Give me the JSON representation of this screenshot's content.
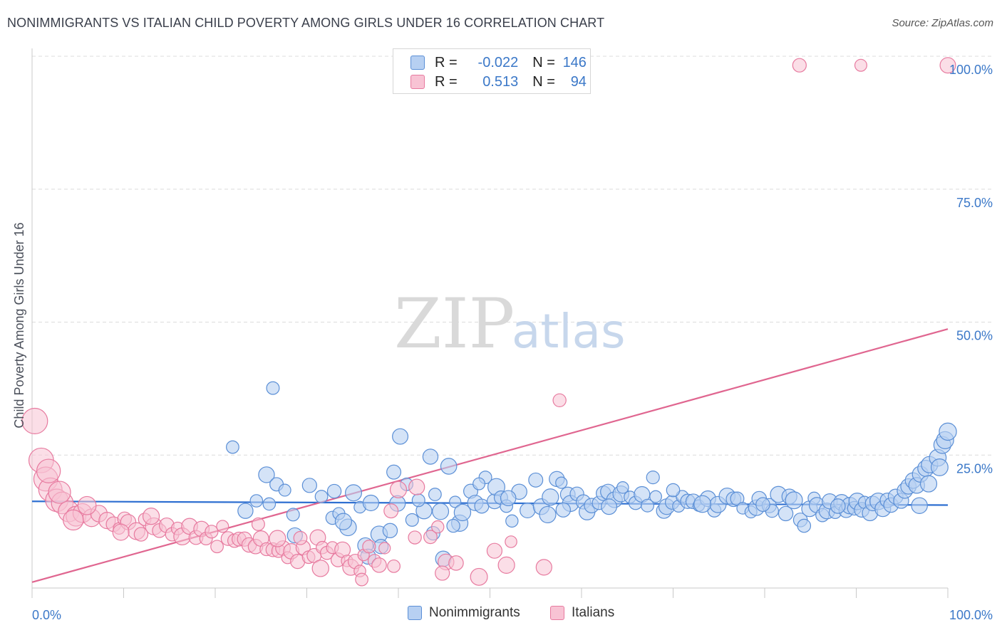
{
  "title": "NONIMMIGRANTS VS ITALIAN CHILD POVERTY AMONG GIRLS UNDER 16 CORRELATION CHART",
  "source": "Source: ZipAtlas.com",
  "watermark": {
    "zip": "ZIP",
    "atlas": "atlas"
  },
  "legend_top": [
    {
      "r_label": "R =",
      "r_value": "-0.022",
      "n_label": "N =",
      "n_value": "146"
    },
    {
      "r_label": "R =",
      "r_value": "0.513",
      "n_label": "N =",
      "n_value": "94"
    }
  ],
  "colors": {
    "blue_fill": "#b7d0f2",
    "blue_stroke": "#5b8fd6",
    "blue_line": "#2e6fd1",
    "pink_fill": "#f8c3d4",
    "pink_stroke": "#e77a9f",
    "pink_line": "#e06690",
    "tick_text": "#3b78c8"
  },
  "chart_data": {
    "type": "scatter",
    "title": "NONIMMIGRANTS VS ITALIAN CHILD POVERTY AMONG GIRLS UNDER 16 CORRELATION CHART",
    "xlabel": "",
    "ylabel": "Child Poverty Among Girls Under 16",
    "xlim": [
      0,
      100
    ],
    "ylim": [
      0,
      100
    ],
    "x_tick_labels": [
      "0.0%",
      "100.0%"
    ],
    "y_tick_labels": [
      "25.0%",
      "50.0%",
      "75.0%",
      "100.0%"
    ],
    "y_ticks": [
      25,
      50,
      75,
      100
    ],
    "grid": true,
    "legend_position": "bottom",
    "series": [
      {
        "name": "Nonimmigrants",
        "r": -0.022,
        "n": 146,
        "trend": {
          "x": [
            0,
            100
          ],
          "y": [
            16.3,
            15.6
          ]
        },
        "points": [
          [
            21.9,
            26.5
          ],
          [
            26.3,
            37.6
          ],
          [
            25.6,
            21.3
          ],
          [
            23.3,
            14.5
          ],
          [
            24.5,
            16.4
          ],
          [
            25.9,
            15.8
          ],
          [
            26.7,
            19.5
          ],
          [
            27.6,
            18.4
          ],
          [
            28.5,
            13.8
          ],
          [
            28.7,
            9.9
          ],
          [
            30.3,
            19.3
          ],
          [
            31.6,
            17.2
          ],
          [
            32.8,
            13.2
          ],
          [
            33.5,
            14.0
          ],
          [
            34.5,
            11.4
          ],
          [
            35.1,
            17.9
          ],
          [
            35.8,
            15.2
          ],
          [
            36.4,
            8.0
          ],
          [
            36.7,
            5.9
          ],
          [
            37.9,
            10.1
          ],
          [
            38.1,
            7.8
          ],
          [
            39.1,
            10.8
          ],
          [
            39.5,
            21.8
          ],
          [
            39.9,
            15.9
          ],
          [
            40.2,
            28.5
          ],
          [
            40.9,
            19.5
          ],
          [
            41.5,
            12.8
          ],
          [
            42.8,
            14.5
          ],
          [
            43.5,
            24.7
          ],
          [
            43.8,
            10.3
          ],
          [
            44.6,
            14.4
          ],
          [
            44.9,
            5.5
          ],
          [
            45.5,
            22.9
          ],
          [
            46.2,
            16.2
          ],
          [
            46.7,
            12.2
          ],
          [
            47.0,
            14.2
          ],
          [
            47.9,
            18.2
          ],
          [
            48.4,
            16.0
          ],
          [
            49.1,
            15.4
          ],
          [
            49.5,
            20.8
          ],
          [
            50.5,
            16.3
          ],
          [
            50.7,
            19.0
          ],
          [
            51.2,
            17.0
          ],
          [
            51.8,
            15.4
          ],
          [
            52.4,
            12.6
          ],
          [
            53.2,
            18.1
          ],
          [
            54.1,
            14.6
          ],
          [
            55.0,
            20.3
          ],
          [
            55.6,
            15.3
          ],
          [
            56.3,
            13.8
          ],
          [
            56.6,
            17.1
          ],
          [
            57.3,
            20.5
          ],
          [
            57.8,
            19.8
          ],
          [
            58.5,
            17.6
          ],
          [
            58.8,
            15.9
          ],
          [
            59.5,
            17.7
          ],
          [
            60.2,
            16.2
          ],
          [
            60.6,
            14.3
          ],
          [
            61.1,
            15.5
          ],
          [
            61.9,
            16.0
          ],
          [
            62.4,
            17.8
          ],
          [
            62.9,
            18.1
          ],
          [
            63.6,
            16.6
          ],
          [
            64.3,
            17.7
          ],
          [
            64.5,
            18.9
          ],
          [
            65.3,
            17.1
          ],
          [
            65.9,
            16.0
          ],
          [
            66.6,
            17.6
          ],
          [
            67.2,
            15.5
          ],
          [
            68.1,
            17.2
          ],
          [
            69.0,
            14.5
          ],
          [
            69.3,
            15.3
          ],
          [
            69.9,
            16.1
          ],
          [
            70.6,
            15.4
          ],
          [
            71.0,
            17.2
          ],
          [
            71.6,
            16.3
          ],
          [
            72.2,
            16.3
          ],
          [
            72.8,
            15.5
          ],
          [
            73.8,
            16.8
          ],
          [
            74.5,
            14.6
          ],
          [
            74.9,
            15.7
          ],
          [
            75.9,
            17.3
          ],
          [
            76.6,
            16.7
          ],
          [
            77.0,
            16.8
          ],
          [
            77.6,
            15.0
          ],
          [
            78.5,
            14.3
          ],
          [
            79.1,
            15.1
          ],
          [
            79.4,
            16.8
          ],
          [
            80.5,
            15.5
          ],
          [
            80.8,
            14.5
          ],
          [
            81.5,
            17.6
          ],
          [
            82.3,
            14.0
          ],
          [
            82.7,
            17.2
          ],
          [
            83.2,
            16.5
          ],
          [
            83.9,
            12.8
          ],
          [
            84.3,
            11.7
          ],
          [
            84.9,
            14.9
          ],
          [
            85.4,
            16.9
          ],
          [
            85.7,
            15.6
          ],
          [
            86.3,
            13.7
          ],
          [
            86.8,
            14.5
          ],
          [
            87.1,
            16.3
          ],
          [
            87.7,
            14.2
          ],
          [
            88.4,
            16.1
          ],
          [
            88.9,
            14.6
          ],
          [
            89.3,
            15.5
          ],
          [
            89.8,
            15.0
          ],
          [
            90.1,
            16.3
          ],
          [
            90.6,
            14.7
          ],
          [
            90.9,
            16.1
          ],
          [
            91.5,
            14.1
          ],
          [
            91.8,
            15.9
          ],
          [
            92.4,
            16.3
          ],
          [
            92.9,
            14.9
          ],
          [
            93.4,
            16.5
          ],
          [
            93.8,
            15.6
          ],
          [
            94.3,
            17.2
          ],
          [
            94.9,
            16.4
          ],
          [
            95.3,
            18.3
          ],
          [
            95.7,
            19.1
          ],
          [
            96.2,
            20.2
          ],
          [
            96.6,
            19.3
          ],
          [
            97.0,
            21.4
          ],
          [
            97.6,
            22.5
          ],
          [
            98.0,
            23.2
          ],
          [
            98.9,
            24.5
          ],
          [
            99.4,
            26.9
          ],
          [
            99.7,
            27.8
          ],
          [
            100.0,
            29.4
          ],
          [
            34.0,
            12.5
          ],
          [
            37.0,
            16.0
          ],
          [
            42.2,
            16.5
          ],
          [
            46.0,
            11.7
          ],
          [
            52.0,
            16.9
          ],
          [
            58.0,
            14.7
          ],
          [
            63.0,
            15.3
          ],
          [
            67.8,
            20.8
          ],
          [
            73.2,
            15.8
          ],
          [
            79.8,
            15.7
          ],
          [
            88.0,
            15.4
          ],
          [
            96.9,
            15.5
          ],
          [
            97.9,
            19.6
          ],
          [
            99.1,
            22.7
          ],
          [
            33.0,
            18.2
          ],
          [
            44.0,
            17.6
          ],
          [
            48.8,
            19.6
          ],
          [
            70.0,
            18.4
          ]
        ]
      },
      {
        "name": "Italians",
        "r": 0.513,
        "n": 94,
        "trend": {
          "x": [
            0,
            100
          ],
          "y": [
            1.1,
            48.7
          ]
        },
        "points": [
          [
            0.3,
            31.4
          ],
          [
            1.0,
            24.0
          ],
          [
            1.5,
            20.5
          ],
          [
            2.0,
            18.5
          ],
          [
            2.7,
            16.5
          ],
          [
            3.3,
            16.0
          ],
          [
            4.0,
            14.4
          ],
          [
            4.8,
            13.5
          ],
          [
            5.5,
            14.1
          ],
          [
            6.5,
            13.2
          ],
          [
            7.3,
            14.0
          ],
          [
            8.2,
            12.7
          ],
          [
            8.9,
            12.0
          ],
          [
            9.5,
            11.2
          ],
          [
            10.1,
            13.0
          ],
          [
            10.5,
            12.4
          ],
          [
            11.4,
            10.7
          ],
          [
            11.9,
            10.1
          ],
          [
            12.3,
            12.9
          ],
          [
            13.3,
            11.6
          ],
          [
            13.9,
            10.8
          ],
          [
            14.7,
            11.8
          ],
          [
            15.3,
            10.1
          ],
          [
            15.9,
            11.2
          ],
          [
            16.4,
            9.7
          ],
          [
            17.2,
            11.6
          ],
          [
            17.9,
            9.5
          ],
          [
            18.5,
            11.1
          ],
          [
            19.0,
            9.3
          ],
          [
            19.6,
            10.6
          ],
          [
            20.2,
            7.8
          ],
          [
            20.8,
            11.6
          ],
          [
            21.4,
            9.3
          ],
          [
            22.1,
            8.9
          ],
          [
            22.6,
            9.2
          ],
          [
            23.2,
            9.2
          ],
          [
            23.7,
            8.1
          ],
          [
            24.4,
            7.8
          ],
          [
            25.0,
            9.3
          ],
          [
            25.6,
            7.3
          ],
          [
            26.3,
            7.2
          ],
          [
            26.9,
            7.0
          ],
          [
            27.4,
            7.5
          ],
          [
            27.9,
            5.7
          ],
          [
            28.3,
            6.9
          ],
          [
            29.0,
            5.0
          ],
          [
            29.6,
            7.6
          ],
          [
            30.2,
            5.8
          ],
          [
            30.8,
            6.1
          ],
          [
            31.2,
            9.5
          ],
          [
            31.7,
            7.6
          ],
          [
            32.2,
            6.6
          ],
          [
            32.8,
            7.6
          ],
          [
            33.4,
            5.3
          ],
          [
            33.9,
            7.2
          ],
          [
            34.4,
            5.1
          ],
          [
            34.8,
            3.9
          ],
          [
            35.3,
            5.0
          ],
          [
            35.8,
            3.2
          ],
          [
            36.2,
            6.2
          ],
          [
            36.8,
            7.8
          ],
          [
            37.4,
            5.1
          ],
          [
            37.9,
            4.3
          ],
          [
            38.5,
            7.5
          ],
          [
            39.2,
            14.5
          ],
          [
            40.0,
            18.5
          ],
          [
            41.8,
            9.5
          ],
          [
            42.0,
            19.0
          ],
          [
            43.5,
            9.6
          ],
          [
            44.3,
            11.5
          ],
          [
            45.2,
            4.9
          ],
          [
            46.3,
            4.7
          ],
          [
            48.8,
            2.1
          ],
          [
            50.5,
            7.0
          ],
          [
            51.8,
            4.3
          ],
          [
            52.3,
            8.7
          ],
          [
            55.9,
            3.9
          ],
          [
            57.6,
            35.3
          ],
          [
            83.8,
            98.3
          ],
          [
            90.5,
            98.3
          ],
          [
            100.0,
            98.3
          ],
          [
            1.8,
            22.0
          ],
          [
            3.0,
            18.0
          ],
          [
            4.5,
            12.8
          ],
          [
            6.0,
            15.5
          ],
          [
            9.7,
            10.5
          ],
          [
            13.0,
            13.5
          ],
          [
            24.7,
            12.0
          ],
          [
            29.3,
            9.4
          ],
          [
            31.5,
            3.7
          ],
          [
            36.0,
            1.6
          ],
          [
            39.5,
            4.1
          ],
          [
            44.8,
            2.8
          ],
          [
            26.8,
            9.3
          ]
        ]
      }
    ]
  },
  "legend_bottom": [
    {
      "label": "Nonimmigrants"
    },
    {
      "label": "Italians"
    }
  ]
}
